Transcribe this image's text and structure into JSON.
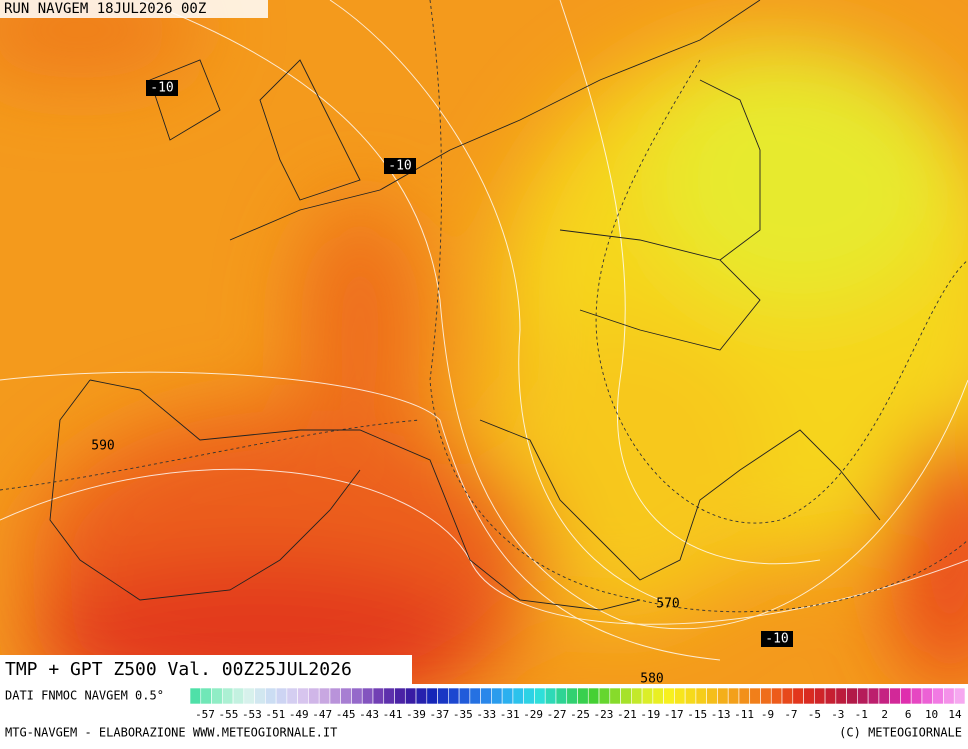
{
  "header": {
    "run": "RUN NAVGEM 18JUL2026 00Z"
  },
  "map": {
    "labels": [
      "-10",
      "-10",
      "-10",
      "590",
      "570",
      "580"
    ]
  },
  "title": "TMP + GPT Z500 Val. 00Z25JUL2026",
  "legend": {
    "source": "DATI FNMOC NAVGEM 0.5°",
    "labels": [
      "-57",
      "-55",
      "-53",
      "-51",
      "-49",
      "-47",
      "-45",
      "-43",
      "-41",
      "-39",
      "-37",
      "-35",
      "-33",
      "-31",
      "-29",
      "-27",
      "-25",
      "-23",
      "-21",
      "-19",
      "-17",
      "-15",
      "-13",
      "-11",
      "-9",
      "-7",
      "-5",
      "-3",
      "-1",
      "2",
      "6",
      "10",
      "14"
    ]
  },
  "footer": {
    "left": "MTG-NAVGEM - ELABORAZIONE WWW.METEOGIORNALE.IT",
    "right": "(C) METEOGIORNALE"
  }
}
